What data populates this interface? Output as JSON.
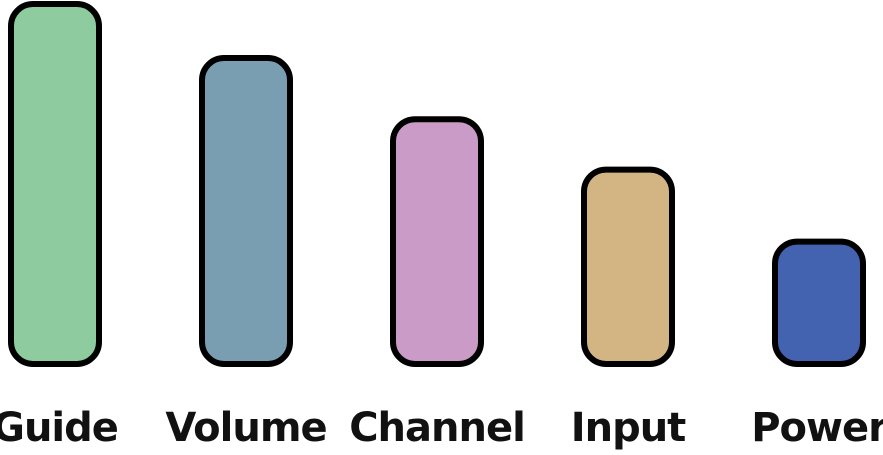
{
  "chart_data": {
    "type": "bar",
    "categories": [
      "Guide",
      "Volume",
      "Channel",
      "Input",
      "Power"
    ],
    "values": [
      100,
      85,
      68,
      54,
      34
    ],
    "ylim": [
      0,
      100
    ],
    "grid": false,
    "title": "",
    "xlabel": "",
    "ylabel": "",
    "colors": [
      "#8ecc9f",
      "#799eb2",
      "#cb9bc7",
      "#d3b584",
      "#4362b0"
    ]
  }
}
